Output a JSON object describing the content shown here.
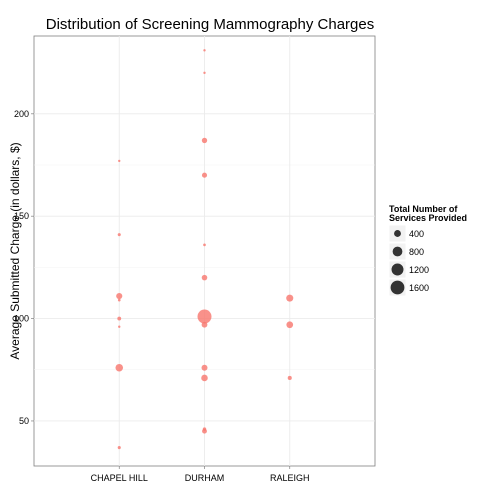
{
  "chart_data": {
    "type": "scatter",
    "title": "Distribution of Screening Mammography Charges",
    "xlabel": "",
    "ylabel": "Average Submitted Charge (in dollars, $)",
    "categories": [
      "CHAPEL HILL",
      "DURHAM",
      "RALEIGH"
    ],
    "ylim": [
      28,
      238
    ],
    "yticks": [
      50,
      100,
      150,
      200
    ],
    "grid": true,
    "point_color": "#f8766d",
    "size_legend": {
      "title_line1": "Total Number of",
      "title_line2": "Services Provided",
      "placement": "right",
      "entries": [
        {
          "value": 400,
          "label": "400"
        },
        {
          "value": 800,
          "label": "800"
        },
        {
          "value": 1200,
          "label": "1200"
        },
        {
          "value": 1600,
          "label": "1600"
        }
      ]
    },
    "points": [
      {
        "x": "CHAPEL HILL",
        "y": 177,
        "size": 40
      },
      {
        "x": "CHAPEL HILL",
        "y": 141,
        "size": 80
      },
      {
        "x": "CHAPEL HILL",
        "y": 111,
        "size": 320
      },
      {
        "x": "CHAPEL HILL",
        "y": 109,
        "size": 60
      },
      {
        "x": "CHAPEL HILL",
        "y": 100,
        "size": 120
      },
      {
        "x": "CHAPEL HILL",
        "y": 96,
        "size": 40
      },
      {
        "x": "CHAPEL HILL",
        "y": 76,
        "size": 480
      },
      {
        "x": "CHAPEL HILL",
        "y": 37,
        "size": 80
      },
      {
        "x": "DURHAM",
        "y": 231,
        "size": 40
      },
      {
        "x": "DURHAM",
        "y": 220,
        "size": 40
      },
      {
        "x": "DURHAM",
        "y": 187,
        "size": 240
      },
      {
        "x": "DURHAM",
        "y": 170,
        "size": 220
      },
      {
        "x": "DURHAM",
        "y": 136,
        "size": 60
      },
      {
        "x": "DURHAM",
        "y": 120,
        "size": 260
      },
      {
        "x": "DURHAM",
        "y": 101,
        "size": 1650
      },
      {
        "x": "DURHAM",
        "y": 97,
        "size": 280
      },
      {
        "x": "DURHAM",
        "y": 76,
        "size": 300
      },
      {
        "x": "DURHAM",
        "y": 71,
        "size": 360
      },
      {
        "x": "DURHAM",
        "y": 46,
        "size": 100
      },
      {
        "x": "DURHAM",
        "y": 45,
        "size": 200
      },
      {
        "x": "RALEIGH",
        "y": 110,
        "size": 420
      },
      {
        "x": "RALEIGH",
        "y": 97,
        "size": 380
      },
      {
        "x": "RALEIGH",
        "y": 71,
        "size": 140
      }
    ]
  }
}
